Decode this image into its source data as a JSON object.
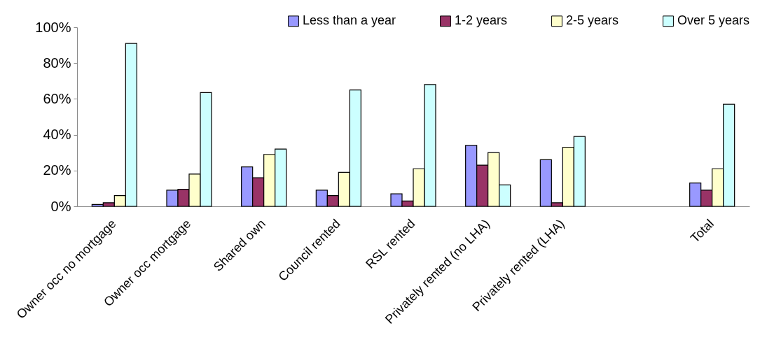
{
  "chart_data": {
    "type": "bar",
    "categories": [
      "Owner occ no mortgage",
      "Owner occ mortgage",
      "Shared own",
      "Council rented",
      "RSL rented",
      "Privately rented (no LHA)",
      "Privately rented (LHA)",
      null,
      "Total"
    ],
    "series": [
      {
        "name": "Less than a year",
        "color": "#9999ff",
        "values": [
          1,
          9,
          22,
          9,
          7,
          34,
          26,
          null,
          13
        ]
      },
      {
        "name": "1-2 years",
        "color": "#993366",
        "values": [
          2,
          9.5,
          16,
          6,
          3,
          23,
          2,
          null,
          9
        ]
      },
      {
        "name": "2-5 years",
        "color": "#ffffcc",
        "values": [
          6,
          18,
          29,
          19,
          21,
          30,
          33,
          null,
          21
        ]
      },
      {
        "name": "Over 5 years",
        "color": "#ccffff",
        "values": [
          91,
          63.5,
          32,
          65,
          68,
          12,
          39,
          null,
          57
        ]
      }
    ],
    "ylim": [
      0,
      100
    ],
    "yticks": [
      {
        "value": 0,
        "label": "0%"
      },
      {
        "value": 20,
        "label": "20%"
      },
      {
        "value": 40,
        "label": "40%"
      },
      {
        "value": 60,
        "label": "60%"
      },
      {
        "value": 80,
        "label": "80%"
      },
      {
        "value": 100,
        "label": "100%"
      }
    ],
    "grid": false,
    "legend": "top right"
  }
}
